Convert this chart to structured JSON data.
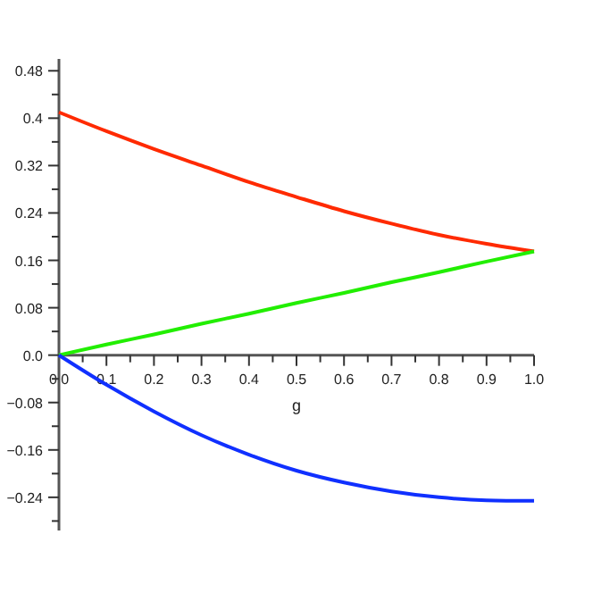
{
  "chart_data": {
    "type": "line",
    "xlabel": "g",
    "x": [
      0,
      0.1,
      0.2,
      0.3,
      0.4,
      0.5,
      0.6,
      0.7,
      0.8,
      0.9,
      1.0
    ],
    "series": [
      {
        "color": "#ff2a00",
        "values": [
          0.41,
          0.378,
          0.348,
          0.32,
          0.292,
          0.267,
          0.243,
          0.222,
          0.203,
          0.188,
          0.175
        ]
      },
      {
        "color": "#22ee00",
        "values": [
          0,
          0.018,
          0.035,
          0.053,
          0.07,
          0.088,
          0.105,
          0.123,
          0.14,
          0.158,
          0.175
        ]
      },
      {
        "color": "#1030ff",
        "values": [
          0,
          -0.05,
          -0.095,
          -0.135,
          -0.168,
          -0.195,
          -0.215,
          -0.23,
          -0.24,
          -0.245,
          -0.246
        ]
      }
    ],
    "xlim": [
      0,
      1.0
    ],
    "xticks": [
      {
        "value": 0,
        "label": "0.0"
      },
      {
        "value": 0.05,
        "label": null
      },
      0.1,
      {
        "value": 0.15,
        "label": null
      },
      0.2,
      {
        "value": 0.25,
        "label": null
      },
      0.3,
      {
        "value": 0.35,
        "label": null
      },
      0.4,
      {
        "value": 0.45,
        "label": null
      },
      0.5,
      {
        "value": 0.55,
        "label": null
      },
      0.6,
      {
        "value": 0.65,
        "label": null
      },
      0.7,
      {
        "value": 0.75,
        "label": null
      },
      0.8,
      {
        "value": 0.85,
        "label": null
      },
      0.9,
      {
        "value": 0.95,
        "label": null
      },
      {
        "value": 1.0,
        "label": "1.0"
      }
    ],
    "ylim": [
      -0.296,
      0.5
    ],
    "yticks": [
      {
        "value": -0.28,
        "label": null
      },
      -0.24,
      {
        "value": -0.2,
        "label": null
      },
      -0.16,
      {
        "value": -0.12,
        "label": null
      },
      -0.08,
      {
        "value": -0.04,
        "label": null
      },
      {
        "value": 0,
        "label": "0.0"
      },
      {
        "value": 0.04,
        "label": null
      },
      0.08,
      {
        "value": 0.12,
        "label": null
      },
      0.16,
      {
        "value": 0.2,
        "label": null
      },
      0.24,
      {
        "value": 0.28,
        "label": null
      },
      0.32,
      {
        "value": 0.36,
        "label": null
      },
      0.4,
      {
        "value": 0.44,
        "label": null
      },
      0.48
    ],
    "grid": false,
    "marker": "none",
    "line_style": "solid"
  }
}
